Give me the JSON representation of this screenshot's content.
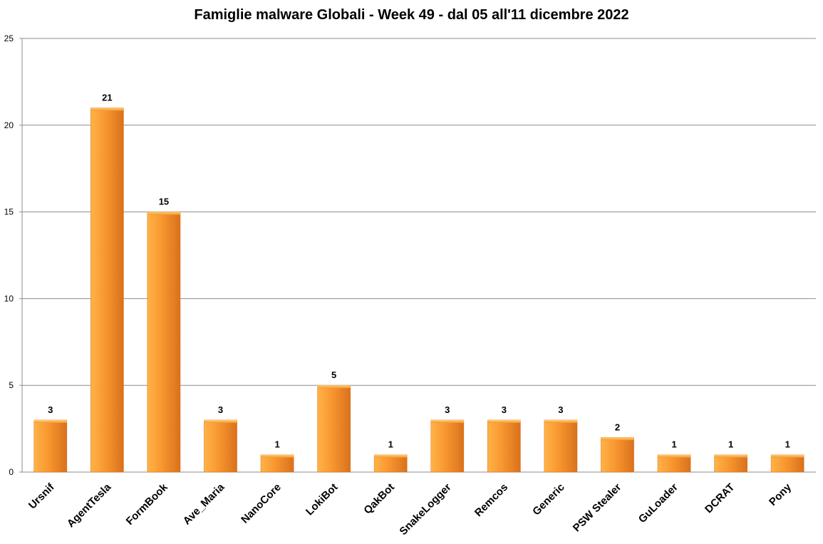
{
  "chart_data": {
    "type": "bar",
    "title": "Famiglie malware Globali - Week 49 - dal 05 all'11 dicembre  2022",
    "categories": [
      "Ursnif",
      "AgentTesla",
      "FormBook",
      "Ave_Maria",
      "NanoCore",
      "LokiBot",
      "QakBot",
      "SnakeLogger",
      "Remcos",
      "Generic",
      "PSW Stealer",
      "GuLoader",
      "DCRAT",
      "Pony"
    ],
    "values": [
      3,
      21,
      15,
      3,
      1,
      5,
      1,
      3,
      3,
      3,
      2,
      1,
      1,
      1
    ],
    "ylim": [
      0,
      25
    ],
    "yticks": [
      0,
      5,
      10,
      15,
      20,
      25
    ],
    "grid": true,
    "legend": "none",
    "data_labels": true,
    "colors": {
      "bar_light": "#FFB347",
      "bar_mid": "#F7962F",
      "bar_dark": "#D9711C",
      "bar_top": "#FFD27A",
      "grid": "#8C8C8C",
      "axis": "#8C8C8C"
    }
  }
}
